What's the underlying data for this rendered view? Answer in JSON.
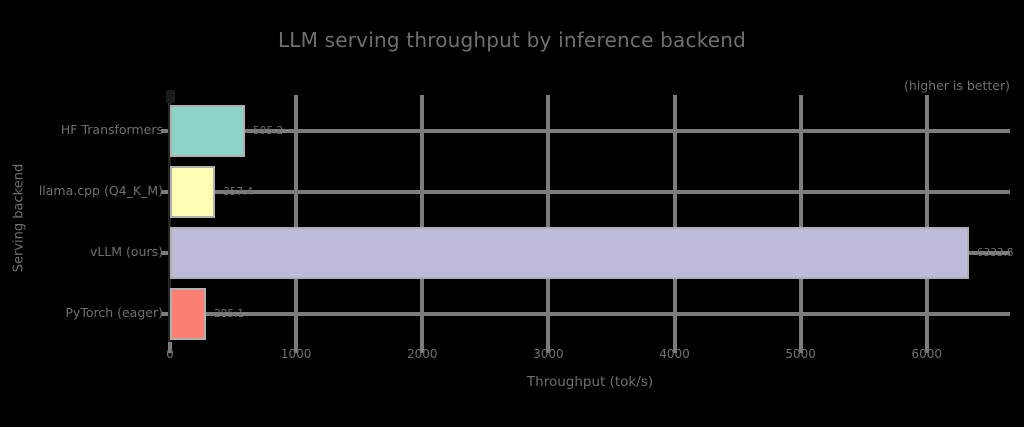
{
  "chart_data": {
    "type": "bar",
    "orientation": "horizontal",
    "title": "LLM serving throughput by inference backend",
    "xlabel": "Throughput (tok/s)",
    "ylabel": "Serving backend",
    "annotation": "(higher is better)",
    "categories": [
      "HF Transformers",
      "llama.cpp (Q4_K_M)",
      "vLLM (ours)",
      "PyTorch (eager)"
    ],
    "values": [
      595.2,
      357.4,
      6333.8,
      285.1
    ],
    "value_labels": [
      "595.2",
      "357.4",
      "6333.8",
      "285.1"
    ],
    "bar_colors": [
      "#8dd3c7",
      "#ffffb3",
      "#bebada",
      "#fb8072"
    ],
    "xticks": [
      0,
      1000,
      2000,
      3000,
      4000,
      5000,
      6000
    ],
    "xtick_labels": [
      "0",
      "1000",
      "2000",
      "3000",
      "4000",
      "5000",
      "6000"
    ],
    "xlim": [
      0,
      6660
    ],
    "grid": true,
    "legend": "none",
    "colors": {
      "background": "#000000",
      "grid": "#7c7c7c",
      "text": "#6f6f6f",
      "spine": "#262626",
      "bar_edge": "#b0b0b0"
    }
  }
}
